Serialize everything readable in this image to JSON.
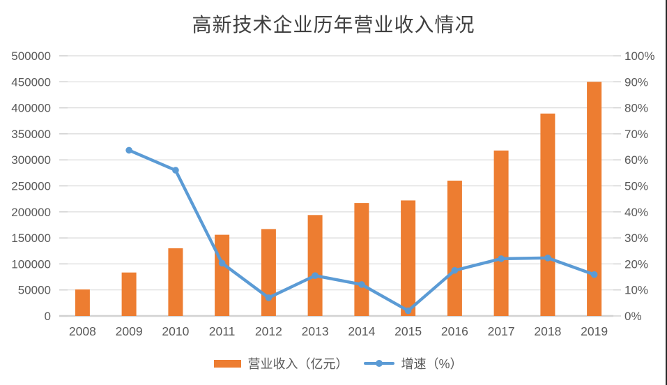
{
  "title": "高新技术企业历年营业收入情况",
  "colors": {
    "bar": "#ED7D31",
    "line": "#5B9BD5",
    "grid": "#D9D9D9",
    "baseline": "#D2D2D2",
    "tick": "#CFCFCF",
    "axis_text": "#595959",
    "title_text": "#404040",
    "background": "#FFFFFF",
    "right_border": "#262626"
  },
  "chart_data": {
    "type": "bar",
    "subtype": "combo-bar-line-dual-axis",
    "title": "高新技术企业历年营业收入情况",
    "categories": [
      "2008",
      "2009",
      "2010",
      "2011",
      "2012",
      "2013",
      "2014",
      "2015",
      "2016",
      "2017",
      "2018",
      "2019"
    ],
    "series": [
      {
        "name": "营业收入（亿元）",
        "type": "bar",
        "axis": "left",
        "color": "#ED7D31",
        "values": [
          51000,
          83500,
          130000,
          156000,
          167000,
          194000,
          217000,
          222000,
          260000,
          318000,
          389000,
          450000
        ]
      },
      {
        "name": "增速（%）",
        "type": "line",
        "axis": "right",
        "color": "#5B9BD5",
        "values": [
          null,
          63.7,
          56,
          20.3,
          7,
          15.5,
          12.1,
          2,
          17.5,
          22,
          22.3,
          15.9
        ]
      }
    ],
    "left_axis": {
      "min": 0,
      "max": 500000,
      "step": 50000,
      "tick_labels": [
        "0",
        "50000",
        "100000",
        "150000",
        "200000",
        "250000",
        "300000",
        "350000",
        "400000",
        "450000",
        "500000"
      ]
    },
    "right_axis": {
      "min": 0,
      "max": 100,
      "step": 10,
      "tick_labels": [
        "0%",
        "10%",
        "20%",
        "30%",
        "40%",
        "50%",
        "60%",
        "70%",
        "80%",
        "90%",
        "100%"
      ]
    },
    "grid": true,
    "legend_position": "bottom"
  }
}
